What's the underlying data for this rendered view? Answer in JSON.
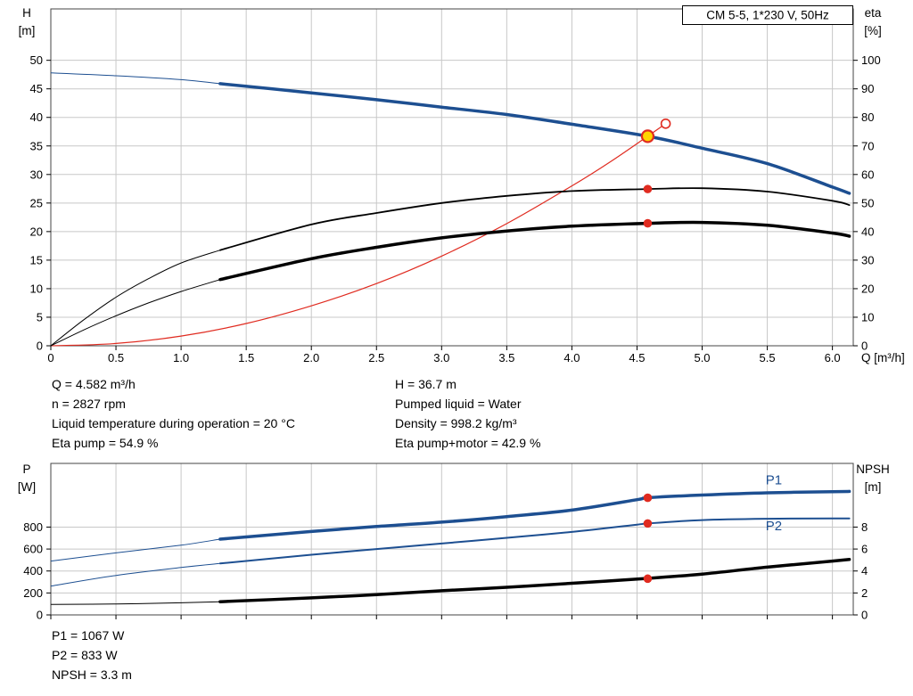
{
  "colors": {
    "blue": "#1d4f91",
    "red": "#e02b20",
    "black": "#000000",
    "grid": "#c8c8c8",
    "frame": "#444444",
    "yellow": "#ffd400"
  },
  "info_top": {
    "left": [
      "Q = 4.582 m³/h",
      "n = 2827 rpm",
      "Liquid temperature during operation = 20 °C",
      "Eta pump = 54.9 %"
    ],
    "right": [
      "H = 36.7 m",
      "Pumped liquid = Water",
      "Density = 998.2 kg/m³",
      "Eta pump+motor = 42.9 %"
    ]
  },
  "info_bottom": [
    "P1 = 1067 W",
    "P2 = 833 W",
    "NPSH = 3.3 m"
  ],
  "chart_data": [
    {
      "type": "line",
      "title": "CM 5-5, 1*230 V, 50Hz",
      "x": {
        "label": "Q [m³/h]",
        "min": 0,
        "max": 6.16,
        "ticks": [
          0,
          0.5,
          1,
          1.5,
          2,
          2.5,
          3,
          3.5,
          4,
          4.5,
          5,
          5.5,
          6
        ],
        "tick_labels": [
          "0",
          "0.5",
          "1.0",
          "1.5",
          "2.0",
          "2.5",
          "3.0",
          "3.5",
          "4.0",
          "4.5",
          "5.0",
          "5.5",
          "6.0"
        ]
      },
      "y_left": {
        "label_lines": [
          "H",
          "[m]"
        ],
        "min": 0,
        "max": 59,
        "ticks": [
          0,
          5,
          10,
          15,
          20,
          25,
          30,
          35,
          40,
          45,
          50
        ],
        "tick_labels": [
          "0",
          "5",
          "10",
          "15",
          "20",
          "25",
          "30",
          "35",
          "40",
          "45",
          "50"
        ]
      },
      "y_right": {
        "label_lines": [
          "eta",
          "[%]"
        ],
        "min": 0,
        "max": 118,
        "ticks": [
          0,
          10,
          20,
          30,
          40,
          50,
          60,
          70,
          80,
          90,
          100
        ],
        "tick_labels": [
          "0",
          "10",
          "20",
          "30",
          "40",
          "50",
          "60",
          "70",
          "80",
          "90",
          "100"
        ]
      },
      "series": [
        {
          "name": "system-curve",
          "axis": "left",
          "color": "red",
          "width": 1.2,
          "points": [
            [
              0,
              0
            ],
            [
              0.5,
              0.4
            ],
            [
              1,
              1.7
            ],
            [
              1.5,
              3.9
            ],
            [
              2,
              7.0
            ],
            [
              2.5,
              10.9
            ],
            [
              3,
              15.7
            ],
            [
              3.5,
              21.4
            ],
            [
              4,
              28.0
            ],
            [
              4.3,
              32.3
            ],
            [
              4.582,
              36.7
            ],
            [
              4.72,
              38.9
            ]
          ]
        },
        {
          "name": "eta-pump",
          "axis": "right",
          "color": "black",
          "width": 1.8,
          "thin_until": 1.3,
          "points": [
            [
              0,
              0
            ],
            [
              0.25,
              9
            ],
            [
              0.5,
              17
            ],
            [
              0.75,
              23.5
            ],
            [
              1,
              29
            ],
            [
              1.3,
              33.5
            ],
            [
              2,
              42.5
            ],
            [
              2.5,
              46.5
            ],
            [
              3,
              50
            ],
            [
              3.5,
              52.5
            ],
            [
              4,
              54.2
            ],
            [
              4.582,
              54.9
            ],
            [
              5,
              55.2
            ],
            [
              5.5,
              54
            ],
            [
              6,
              50.8
            ],
            [
              6.13,
              49.3
            ]
          ]
        },
        {
          "name": "eta-pump-motor",
          "axis": "right",
          "color": "black",
          "width": 3.5,
          "thin_until": 1.3,
          "points": [
            [
              0,
              0
            ],
            [
              0.25,
              5.5
            ],
            [
              0.5,
              10.5
            ],
            [
              0.75,
              15
            ],
            [
              1,
              19
            ],
            [
              1.3,
              23.2
            ],
            [
              2,
              30.5
            ],
            [
              2.5,
              34.5
            ],
            [
              3,
              37.8
            ],
            [
              3.5,
              40.2
            ],
            [
              4,
              41.9
            ],
            [
              4.582,
              42.9
            ],
            [
              5,
              43.2
            ],
            [
              5.5,
              42.2
            ],
            [
              6,
              39.5
            ],
            [
              6.13,
              38.4
            ]
          ]
        },
        {
          "name": "h-curve",
          "axis": "left",
          "color": "blue",
          "width": 3.5,
          "thin_until": 1.3,
          "points": [
            [
              0,
              47.8
            ],
            [
              0.5,
              47.3
            ],
            [
              1,
              46.6
            ],
            [
              1.3,
              45.9
            ],
            [
              2,
              44.3
            ],
            [
              2.5,
              43.1
            ],
            [
              3,
              41.8
            ],
            [
              3.5,
              40.5
            ],
            [
              4,
              38.8
            ],
            [
              4.582,
              36.7
            ],
            [
              5,
              34.6
            ],
            [
              5.5,
              31.9
            ],
            [
              6,
              27.8
            ],
            [
              6.13,
              26.7
            ]
          ]
        }
      ],
      "markers": [
        {
          "q": 4.582,
          "value": 54.9,
          "axis": "right",
          "style": "dot"
        },
        {
          "q": 4.582,
          "value": 42.9,
          "axis": "right",
          "style": "dot"
        },
        {
          "q": 4.72,
          "value": 38.9,
          "axis": "left",
          "style": "open"
        },
        {
          "q": 4.582,
          "value": 36.7,
          "axis": "left",
          "style": "duty"
        }
      ]
    },
    {
      "type": "line",
      "x": {
        "min": 0,
        "max": 6.16,
        "ticks": [
          0,
          0.5,
          1,
          1.5,
          2,
          2.5,
          3,
          3.5,
          4,
          4.5,
          5,
          5.5,
          6
        ]
      },
      "y_left": {
        "label_lines": [
          "P",
          "[W]"
        ],
        "min": 0,
        "max": 1380,
        "ticks": [
          0,
          200,
          400,
          600,
          800
        ],
        "tick_labels": [
          "0",
          "200",
          "400",
          "600",
          "800"
        ]
      },
      "y_right": {
        "label_lines": [
          "NPSH",
          "[m]"
        ],
        "min": 0,
        "max": 13.8,
        "ticks": [
          0,
          2,
          4,
          6,
          8
        ],
        "tick_labels": [
          "0",
          "2",
          "4",
          "6",
          "8"
        ]
      },
      "series": [
        {
          "name": "npsh",
          "axis": "right",
          "color": "black",
          "width": 3.5,
          "thin_until": 1.3,
          "points": [
            [
              0,
              0.95
            ],
            [
              0.5,
              1.0
            ],
            [
              1,
              1.1
            ],
            [
              1.3,
              1.2
            ],
            [
              2,
              1.55
            ],
            [
              2.5,
              1.85
            ],
            [
              3,
              2.2
            ],
            [
              3.5,
              2.52
            ],
            [
              4,
              2.88
            ],
            [
              4.582,
              3.33
            ],
            [
              5,
              3.72
            ],
            [
              5.5,
              4.35
            ],
            [
              6,
              4.9
            ],
            [
              6.13,
              5.05
            ]
          ]
        },
        {
          "name": "p2",
          "axis": "left",
          "color": "blue",
          "width": 2,
          "thin_until": 1.3,
          "points": [
            [
              0,
              262
            ],
            [
              0.5,
              360
            ],
            [
              1,
              432
            ],
            [
              1.3,
              468
            ],
            [
              2,
              548
            ],
            [
              2.5,
              600
            ],
            [
              3,
              650
            ],
            [
              3.5,
              702
            ],
            [
              4,
              756
            ],
            [
              4.5,
              822
            ],
            [
              4.582,
              833
            ],
            [
              5,
              864
            ],
            [
              5.5,
              876
            ],
            [
              6,
              878
            ],
            [
              6.13,
              878
            ]
          ]
        },
        {
          "name": "p1",
          "axis": "left",
          "color": "blue",
          "width": 3.5,
          "thin_until": 1.3,
          "points": [
            [
              0,
              490
            ],
            [
              0.5,
              565
            ],
            [
              1,
              635
            ],
            [
              1.3,
              690
            ],
            [
              2,
              760
            ],
            [
              2.5,
              805
            ],
            [
              3,
              845
            ],
            [
              3.5,
              895
            ],
            [
              4,
              955
            ],
            [
              4.5,
              1050
            ],
            [
              4.582,
              1067
            ],
            [
              5,
              1092
            ],
            [
              5.5,
              1112
            ],
            [
              6,
              1122
            ],
            [
              6.13,
              1125
            ]
          ]
        }
      ],
      "annotations": [
        {
          "text": "P1",
          "q": 5.55,
          "value": 1190,
          "axis": "left",
          "color": "blue"
        },
        {
          "text": "P2",
          "q": 5.55,
          "value": 770,
          "axis": "left",
          "color": "blue"
        }
      ],
      "markers": [
        {
          "q": 4.582,
          "value": 1067,
          "axis": "left",
          "style": "dot"
        },
        {
          "q": 4.582,
          "value": 833,
          "axis": "left",
          "style": "dot"
        },
        {
          "q": 4.582,
          "value": 3.3,
          "axis": "right",
          "style": "dot"
        }
      ]
    }
  ]
}
